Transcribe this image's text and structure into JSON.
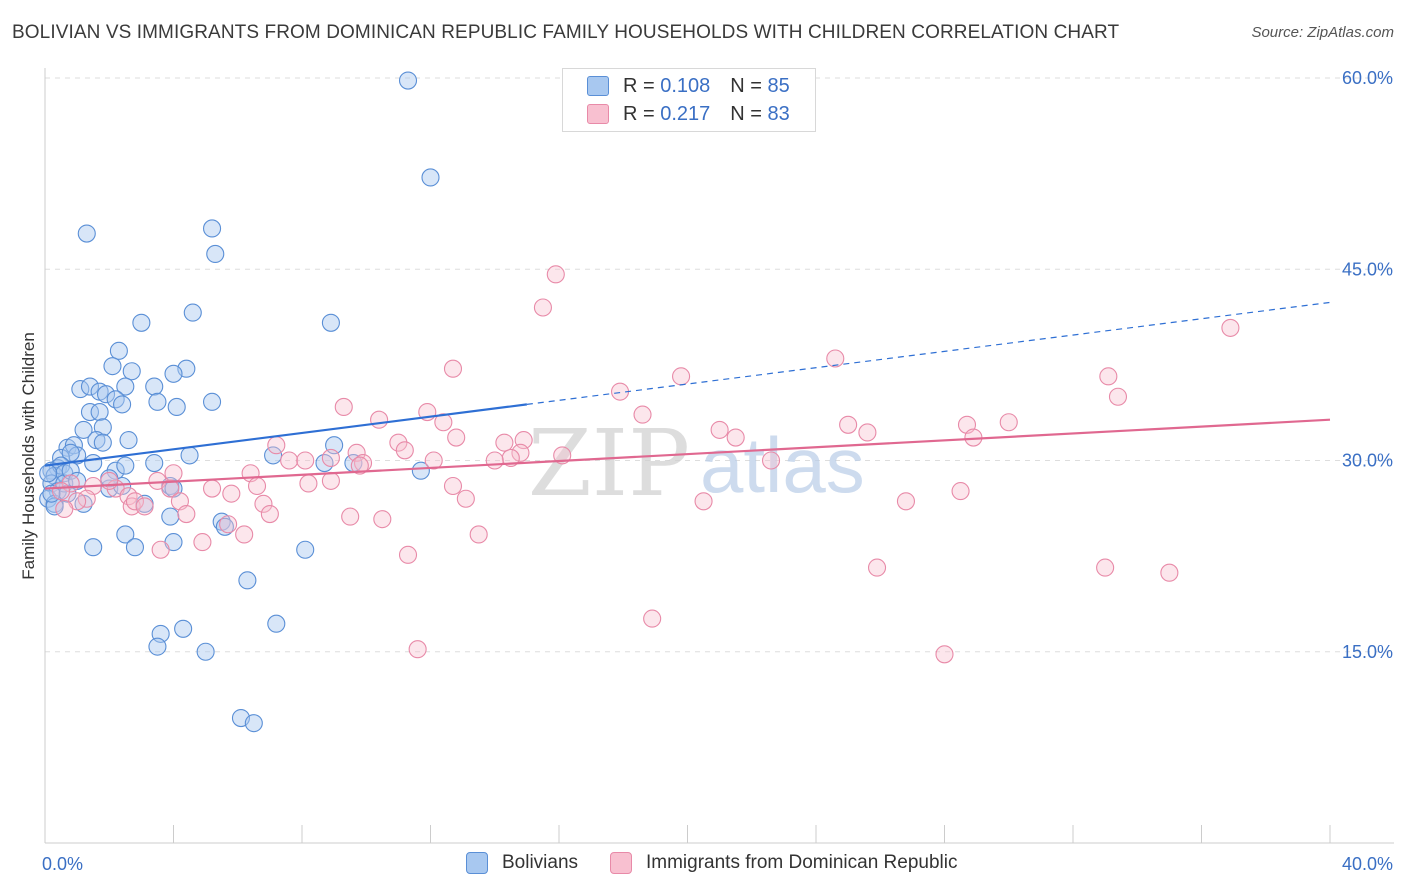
{
  "title": "BOLIVIAN VS IMMIGRANTS FROM DOMINICAN REPUBLIC FAMILY HOUSEHOLDS WITH CHILDREN CORRELATION CHART",
  "source": "Source: ZipAtlas.com",
  "watermark": {
    "zip": "ZIP",
    "atlas": "atlas"
  },
  "legend_top": [
    {
      "r_label": "R =",
      "r_value": "0.108",
      "n_label": "N =",
      "n_value": "85"
    },
    {
      "r_label": "R =",
      "r_value": "0.217",
      "n_label": "N =",
      "n_value": "83"
    }
  ],
  "colors": {
    "blue_fill": "#a8c8f0",
    "blue_stroke": "#5a8fd6",
    "blue_line": "#2e6fd4",
    "pink_fill": "#f8c0d0",
    "pink_stroke": "#e88aa8",
    "pink_line": "#e06890",
    "grid": "#dddddd",
    "tick_label": "#3a6fc4"
  },
  "chart_data": {
    "type": "scatter",
    "title": "BOLIVIAN VS IMMIGRANTS FROM DOMINICAN REPUBLIC FAMILY HOUSEHOLDS WITH CHILDREN CORRELATION CHART",
    "xlabel": "",
    "ylabel": "Family Households with Children",
    "xlim": [
      0,
      40
    ],
    "ylim": [
      0,
      60
    ],
    "x_tick_labels": [
      "0.0%",
      "40.0%"
    ],
    "y_ticks": [
      15,
      30,
      45,
      60
    ],
    "y_tick_labels": [
      "15.0%",
      "30.0%",
      "45.0%",
      "60.0%"
    ],
    "legend": [
      "Bolivians",
      "Immigrants from Dominican Republic"
    ],
    "series": [
      {
        "name": "Bolivians",
        "r": 0.108,
        "n": 85,
        "trend": {
          "x0": 0,
          "y0": 29.6,
          "x1": 15,
          "y1": 34.4,
          "x_dash_end": 40
        },
        "points": [
          [
            11.3,
            59.8
          ],
          [
            12.0,
            52.2
          ],
          [
            1.3,
            47.8
          ],
          [
            5.2,
            48.2
          ],
          [
            5.3,
            46.2
          ],
          [
            4.6,
            41.6
          ],
          [
            3.0,
            40.8
          ],
          [
            8.9,
            40.8
          ],
          [
            2.3,
            38.6
          ],
          [
            2.1,
            37.4
          ],
          [
            2.7,
            37.0
          ],
          [
            4.4,
            37.2
          ],
          [
            4.0,
            36.8
          ],
          [
            1.1,
            35.6
          ],
          [
            1.4,
            35.8
          ],
          [
            2.5,
            35.8
          ],
          [
            3.4,
            35.8
          ],
          [
            1.7,
            35.4
          ],
          [
            1.9,
            35.2
          ],
          [
            2.2,
            34.8
          ],
          [
            2.4,
            34.4
          ],
          [
            3.5,
            34.6
          ],
          [
            4.1,
            34.2
          ],
          [
            5.2,
            34.6
          ],
          [
            1.4,
            33.8
          ],
          [
            1.7,
            33.8
          ],
          [
            1.2,
            32.4
          ],
          [
            1.8,
            32.6
          ],
          [
            2.6,
            31.6
          ],
          [
            1.6,
            31.6
          ],
          [
            0.7,
            31.0
          ],
          [
            0.9,
            31.2
          ],
          [
            1.8,
            31.4
          ],
          [
            1.0,
            30.4
          ],
          [
            0.5,
            30.2
          ],
          [
            0.8,
            30.6
          ],
          [
            4.5,
            30.4
          ],
          [
            7.1,
            30.4
          ],
          [
            9.0,
            31.2
          ],
          [
            0.4,
            29.4
          ],
          [
            0.2,
            29.2
          ],
          [
            0.3,
            28.8
          ],
          [
            0.5,
            29.6
          ],
          [
            0.6,
            29.0
          ],
          [
            1.5,
            29.8
          ],
          [
            2.2,
            29.2
          ],
          [
            2.5,
            29.6
          ],
          [
            3.4,
            29.8
          ],
          [
            8.7,
            29.8
          ],
          [
            9.6,
            29.8
          ],
          [
            11.7,
            29.2
          ],
          [
            0.2,
            28.2
          ],
          [
            0.4,
            27.6
          ],
          [
            0.6,
            28.2
          ],
          [
            0.1,
            27.0
          ],
          [
            0.3,
            26.6
          ],
          [
            1.2,
            26.6
          ],
          [
            0.7,
            27.4
          ],
          [
            2.0,
            27.8
          ],
          [
            2.4,
            28.0
          ],
          [
            3.9,
            28.0
          ],
          [
            4.0,
            27.8
          ],
          [
            3.1,
            26.6
          ],
          [
            3.9,
            25.6
          ],
          [
            5.5,
            25.2
          ],
          [
            5.6,
            24.8
          ],
          [
            2.5,
            24.2
          ],
          [
            2.8,
            23.2
          ],
          [
            4.0,
            23.6
          ],
          [
            1.5,
            23.2
          ],
          [
            8.1,
            23.0
          ],
          [
            6.3,
            20.6
          ],
          [
            7.2,
            17.2
          ],
          [
            3.6,
            16.4
          ],
          [
            4.3,
            16.8
          ],
          [
            3.5,
            15.4
          ],
          [
            5.0,
            15.0
          ],
          [
            6.1,
            9.8
          ],
          [
            6.5,
            9.4
          ],
          [
            0.1,
            29.0
          ],
          [
            0.3,
            26.4
          ],
          [
            0.8,
            29.2
          ],
          [
            1.0,
            28.4
          ],
          [
            2.0,
            28.6
          ],
          [
            0.2,
            27.4
          ]
        ]
      },
      {
        "name": "Immigrants from Dominican Republic",
        "r": 0.217,
        "n": 83,
        "trend": {
          "x0": 0,
          "y0": 27.8,
          "x1": 40,
          "y1": 33.2
        },
        "points": [
          [
            15.9,
            44.6
          ],
          [
            15.5,
            42.0
          ],
          [
            36.9,
            40.4
          ],
          [
            24.6,
            38.0
          ],
          [
            12.7,
            37.2
          ],
          [
            19.8,
            36.6
          ],
          [
            17.9,
            35.4
          ],
          [
            33.1,
            36.6
          ],
          [
            33.4,
            35.0
          ],
          [
            9.3,
            34.2
          ],
          [
            11.9,
            33.8
          ],
          [
            10.4,
            33.2
          ],
          [
            12.4,
            33.0
          ],
          [
            18.6,
            33.6
          ],
          [
            21.0,
            32.4
          ],
          [
            25.0,
            32.8
          ],
          [
            25.6,
            32.2
          ],
          [
            28.7,
            32.8
          ],
          [
            30.0,
            33.0
          ],
          [
            21.5,
            31.8
          ],
          [
            12.8,
            31.8
          ],
          [
            14.3,
            31.4
          ],
          [
            14.9,
            31.6
          ],
          [
            28.9,
            31.8
          ],
          [
            11.0,
            31.4
          ],
          [
            7.2,
            31.2
          ],
          [
            9.7,
            30.6
          ],
          [
            11.2,
            30.8
          ],
          [
            14.8,
            30.6
          ],
          [
            14.5,
            30.2
          ],
          [
            12.1,
            30.0
          ],
          [
            7.6,
            30.0
          ],
          [
            8.1,
            30.0
          ],
          [
            8.9,
            30.2
          ],
          [
            9.9,
            29.8
          ],
          [
            22.6,
            30.0
          ],
          [
            6.4,
            29.0
          ],
          [
            4.0,
            29.0
          ],
          [
            3.5,
            28.4
          ],
          [
            3.9,
            27.8
          ],
          [
            5.2,
            27.8
          ],
          [
            6.6,
            28.0
          ],
          [
            8.2,
            28.2
          ],
          [
            8.9,
            28.4
          ],
          [
            5.8,
            27.4
          ],
          [
            2.2,
            27.8
          ],
          [
            1.5,
            28.0
          ],
          [
            0.8,
            28.2
          ],
          [
            0.5,
            27.6
          ],
          [
            1.3,
            27.0
          ],
          [
            1.0,
            26.8
          ],
          [
            2.6,
            27.2
          ],
          [
            2.7,
            26.4
          ],
          [
            2.8,
            26.8
          ],
          [
            3.1,
            26.4
          ],
          [
            4.2,
            26.8
          ],
          [
            6.8,
            26.6
          ],
          [
            13.1,
            27.0
          ],
          [
            20.5,
            26.8
          ],
          [
            26.8,
            26.8
          ],
          [
            28.5,
            27.6
          ],
          [
            0.6,
            26.2
          ],
          [
            4.4,
            25.8
          ],
          [
            7.0,
            25.8
          ],
          [
            9.5,
            25.6
          ],
          [
            10.5,
            25.4
          ],
          [
            5.7,
            25.0
          ],
          [
            6.2,
            24.2
          ],
          [
            13.5,
            24.2
          ],
          [
            4.9,
            23.6
          ],
          [
            3.6,
            23.0
          ],
          [
            11.3,
            22.6
          ],
          [
            25.9,
            21.6
          ],
          [
            33.0,
            21.6
          ],
          [
            35.0,
            21.2
          ],
          [
            18.9,
            17.6
          ],
          [
            11.6,
            15.2
          ],
          [
            28.0,
            14.8
          ],
          [
            12.7,
            28.0
          ],
          [
            16.1,
            30.4
          ],
          [
            9.8,
            29.6
          ],
          [
            14.0,
            30.0
          ],
          [
            2.0,
            28.4
          ]
        ]
      }
    ]
  }
}
